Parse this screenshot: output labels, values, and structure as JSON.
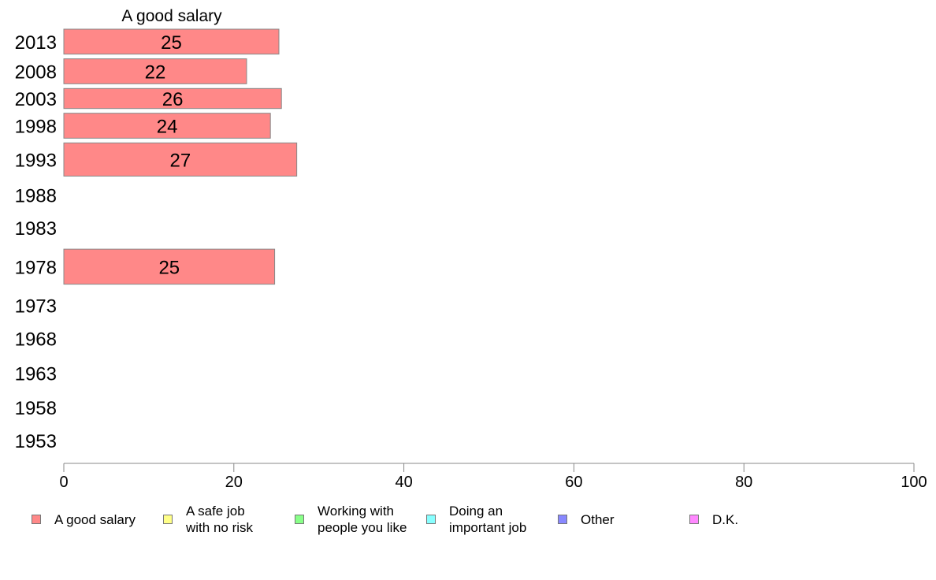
{
  "chart_data": {
    "type": "bar",
    "orientation": "horizontal",
    "title": "A good salary",
    "categories": [
      "2013",
      "2008",
      "2003",
      "1998",
      "1993",
      "1988",
      "1983",
      "1978",
      "1973",
      "1968",
      "1963",
      "1958",
      "1953"
    ],
    "series": [
      {
        "name": "A good salary",
        "color": "#ff8888",
        "values": [
          25.3,
          21.5,
          25.6,
          24.3,
          27.4,
          null,
          null,
          24.8,
          null,
          null,
          null,
          null,
          null
        ],
        "labels": [
          "25",
          "22",
          "26",
          "24",
          "27",
          "",
          "",
          "25",
          "",
          "",
          "",
          "",
          ""
        ]
      }
    ],
    "xlim": [
      0,
      100
    ],
    "xticks": [
      "0",
      "20",
      "40",
      "60",
      "80",
      "100"
    ],
    "grid": false,
    "legend_position": "bottom"
  },
  "legend": [
    {
      "label": "A good salary",
      "color": "#ff8888"
    },
    {
      "label": "A safe job\nwith no risk",
      "color": "#ffff88"
    },
    {
      "label": "Working with\npeople you like",
      "color": "#88ff88"
    },
    {
      "label": "Doing an\nimportant job",
      "color": "#88ffff"
    },
    {
      "label": "Other",
      "color": "#8888ff"
    },
    {
      "label": "D.K.",
      "color": "#ff88ff"
    }
  ]
}
